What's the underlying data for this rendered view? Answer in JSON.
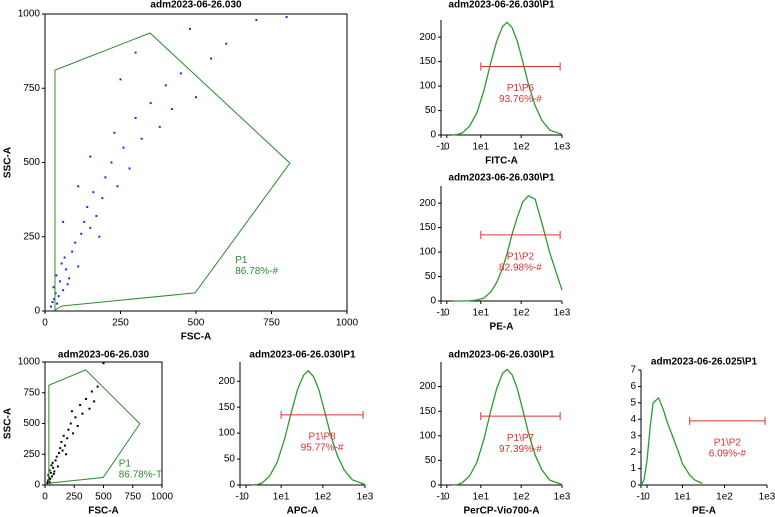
{
  "chart_data": [
    {
      "type": "scatter",
      "title": "adm2023-06-26.030",
      "xlabel": "FSC-A",
      "ylabel": "SSC-A",
      "color": "#1a2fe0",
      "x": [
        20,
        25,
        30,
        35,
        40,
        28,
        45,
        50,
        38,
        60,
        70,
        55,
        80,
        90,
        65,
        100,
        110,
        120,
        75,
        130,
        150,
        140,
        170,
        160,
        190,
        200,
        180,
        220,
        240,
        260,
        230,
        280,
        300,
        320,
        350,
        380,
        400,
        420,
        450,
        500,
        550,
        600,
        480,
        300,
        250,
        150,
        110,
        60,
        700,
        800
      ],
      "y": [
        15,
        30,
        40,
        60,
        25,
        80,
        50,
        100,
        120,
        70,
        140,
        160,
        110,
        200,
        180,
        230,
        150,
        260,
        90,
        300,
        280,
        350,
        320,
        400,
        380,
        450,
        250,
        500,
        420,
        550,
        600,
        480,
        650,
        580,
        700,
        620,
        760,
        680,
        800,
        720,
        850,
        900,
        950,
        870,
        780,
        520,
        420,
        300,
        980,
        990
      ],
      "xlim": [
        0,
        1000
      ],
      "xticks": [
        0,
        250,
        500,
        750,
        1000
      ],
      "ylim": [
        0,
        1000
      ],
      "yticks": [
        0,
        250,
        500,
        750,
        1000
      ],
      "gate": {
        "x": [
          33,
          348,
          811,
          497,
          56,
          33
        ],
        "y": [
          811,
          936,
          498,
          61,
          17,
          3
        ],
        "color": "#2e8b2e"
      },
      "annotation": [
        "P1",
        "86.78%-#"
      ]
    },
    {
      "type": "line",
      "title": "adm2023-06-26.030\\P1",
      "xlabel": "FITC-A",
      "xscale": "biex",
      "color": "#2e9a2e",
      "x": [
        1,
        2,
        3,
        5,
        8,
        12,
        18,
        25,
        35,
        45,
        60,
        80,
        110,
        150,
        220,
        320,
        500,
        1000
      ],
      "values": [
        0,
        1.4,
        4.5,
        18,
        46,
        91,
        149,
        192,
        222,
        230,
        219,
        192,
        149,
        104,
        60,
        30,
        10,
        1.4
      ],
      "xlim": [
        -1,
        1000
      ],
      "xticks": [
        -1,
        0,
        {
          "value": 10,
          "label": "1e1"
        },
        {
          "value": 100,
          "label": "1e2"
        },
        {
          "value": 1000,
          "label": "1e3"
        }
      ],
      "ylim": [
        0,
        235
      ],
      "yticks": [
        0,
        50,
        100,
        150,
        200
      ],
      "gate_range": [
        10,
        900
      ],
      "gate_level": 140,
      "gate_color": "#e03030",
      "annotation": [
        "P1\\P6",
        "93.76%-#"
      ]
    },
    {
      "type": "line",
      "title": "adm2023-06-26.030\\P1",
      "xlabel": "PE-A",
      "xscale": "biex",
      "color": "#2e9a2e",
      "x": [
        1,
        2,
        3,
        5,
        8,
        12,
        18,
        25,
        35,
        45,
        60,
        80,
        110,
        150,
        220,
        320,
        500,
        1000
      ],
      "values": [
        0,
        0,
        0,
        0.5,
        2,
        6,
        19,
        38,
        67,
        97,
        137,
        171,
        203,
        215,
        208,
        160,
        99,
        22
      ],
      "xlim": [
        -1,
        1000
      ],
      "xticks": [
        -1,
        0,
        {
          "value": 10,
          "label": "1e1"
        },
        {
          "value": 100,
          "label": "1e2"
        },
        {
          "value": 1000,
          "label": "1e3"
        }
      ],
      "ylim": [
        0,
        235
      ],
      "yticks": [
        0,
        50,
        100,
        150,
        200
      ],
      "gate_range": [
        10,
        900
      ],
      "gate_level": 135,
      "gate_color": "#e03030",
      "annotation": [
        "P1\\P2",
        "82.98%-#"
      ]
    },
    {
      "type": "scatter",
      "title": "adm2023-06-26.030",
      "xlabel": "FSC-A",
      "ylabel": "SSC-A",
      "color": "#000000",
      "x": [
        20,
        25,
        30,
        35,
        40,
        28,
        45,
        50,
        38,
        60,
        70,
        55,
        80,
        90,
        65,
        100,
        110,
        120,
        75,
        130,
        150,
        140,
        170,
        160,
        190,
        200,
        180,
        220,
        240,
        260,
        230,
        280,
        300,
        320,
        350,
        380,
        400,
        420,
        450,
        500
      ],
      "y": [
        15,
        30,
        40,
        60,
        25,
        80,
        50,
        100,
        120,
        70,
        140,
        160,
        110,
        200,
        180,
        230,
        150,
        260,
        90,
        300,
        280,
        350,
        320,
        400,
        380,
        450,
        250,
        500,
        420,
        550,
        600,
        480,
        650,
        580,
        700,
        620,
        760,
        680,
        800,
        990
      ],
      "xlim": [
        0,
        1000
      ],
      "xticks": [
        0,
        250,
        500,
        750,
        1000
      ],
      "ylim": [
        0,
        1000
      ],
      "yticks": [
        0,
        250,
        500,
        750,
        1000
      ],
      "gate": {
        "x": [
          33,
          348,
          811,
          497,
          56,
          33
        ],
        "y": [
          811,
          936,
          498,
          61,
          17,
          3
        ],
        "color": "#2e8b2e"
      },
      "annotation": [
        "P1",
        "86.78%-T"
      ]
    },
    {
      "type": "line",
      "title": "adm2023-06-26.030\\P1",
      "xlabel": "APC-A",
      "xscale": "biex",
      "color": "#2e9a2e",
      "x": [
        1,
        2,
        3,
        5,
        8,
        12,
        18,
        25,
        35,
        45,
        60,
        80,
        110,
        150,
        220,
        320,
        500,
        1000
      ],
      "values": [
        0,
        1,
        4,
        17,
        44,
        87,
        142,
        184,
        212,
        220,
        209,
        184,
        142,
        99,
        57,
        29,
        10,
        1
      ],
      "xlim": [
        -1,
        1000
      ],
      "xticks": [
        -1,
        0,
        {
          "value": 10,
          "label": "1e1"
        },
        {
          "value": 100,
          "label": "1e2"
        },
        {
          "value": 1000,
          "label": "1e3"
        }
      ],
      "ylim": [
        0,
        237
      ],
      "yticks": [
        0,
        50,
        100,
        150,
        200
      ],
      "gate_range": [
        10,
        900
      ],
      "gate_level": 135,
      "gate_color": "#e03030",
      "annotation": [
        "P1\\P8",
        "95.77%-#"
      ]
    },
    {
      "type": "line",
      "title": "adm2023-06-26.030\\P1",
      "xlabel": "PerCP-Vio700-A",
      "xscale": "biex",
      "color": "#2e9a2e",
      "x": [
        1,
        2,
        3,
        5,
        8,
        12,
        18,
        25,
        35,
        45,
        60,
        80,
        110,
        150,
        220,
        320,
        500,
        1000
      ],
      "values": [
        0,
        1,
        5,
        18,
        47,
        93,
        152,
        196,
        227,
        235,
        224,
        196,
        152,
        106,
        61,
        31,
        10,
        1
      ],
      "xlim": [
        -1,
        1000
      ],
      "xticks": [
        -1,
        0,
        {
          "value": 10,
          "label": "1e1"
        },
        {
          "value": 100,
          "label": "1e2"
        },
        {
          "value": 1000,
          "label": "1e3"
        }
      ],
      "ylim": [
        0,
        250
      ],
      "yticks": [
        0,
        50,
        100,
        150,
        200
      ],
      "gate_range": [
        10,
        900
      ],
      "gate_level": 140,
      "gate_color": "#e03030",
      "annotation": [
        "P1\\P7",
        "97.39%-#"
      ]
    },
    {
      "type": "line",
      "title": "adm2023-06-26.025\\P1",
      "xlabel": "PE-A",
      "xscale": "biex",
      "color": "#2e9a2e",
      "x": [
        -1,
        -0.5,
        0,
        0.5,
        1,
        2,
        3,
        4,
        6,
        8,
        10,
        15,
        20,
        30
      ],
      "values": [
        0,
        0.3,
        1.5,
        3.5,
        5,
        5.3,
        4.6,
        3.8,
        2.8,
        2,
        1.3,
        0.6,
        0.3,
        0.1
      ],
      "xlim": [
        -1,
        1000
      ],
      "xticks": [
        -1,
        0,
        {
          "value": 10,
          "label": "1e1"
        },
        {
          "value": 100,
          "label": "1e2"
        },
        {
          "value": 1000,
          "label": "1e3"
        }
      ],
      "ylim": [
        0,
        7
      ],
      "yticks": [
        0,
        1,
        2,
        3,
        4,
        5,
        6,
        7
      ],
      "gate_range": [
        15,
        900
      ],
      "gate_level": 3.9,
      "gate_color": "#e03030",
      "annotation": [
        "P1\\P2",
        "6.09%-#"
      ]
    }
  ]
}
